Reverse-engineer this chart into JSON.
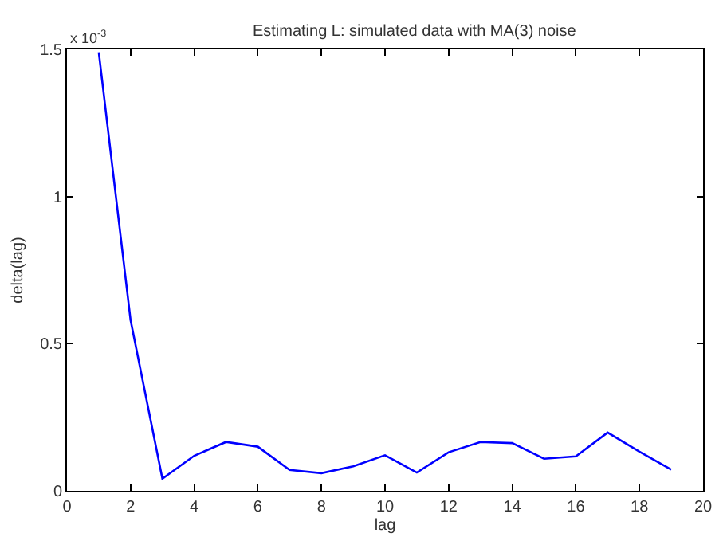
{
  "chart_data": {
    "type": "line",
    "title": "Estimating L: simulated data with MA(3) noise",
    "xlabel": "lag",
    "ylabel": "delta(lag)",
    "annotations": [
      "x 10$^{-3}$"
    ],
    "x": [
      1,
      2,
      3,
      4,
      5,
      6,
      7,
      8,
      9,
      10,
      11,
      12,
      13,
      14,
      15,
      16,
      17,
      18,
      19
    ],
    "series": [
      {
        "color": "#0000ff",
        "values": [
          1.49,
          0.58,
          0.041,
          0.119,
          0.166,
          0.15,
          0.071,
          0.06,
          0.083,
          0.121,
          0.062,
          0.131,
          0.166,
          0.162,
          0.109,
          0.117,
          0.198,
          0.133,
          0.072
        ]
      }
    ],
    "xlim": [
      0,
      20
    ],
    "xticks": [
      0,
      2,
      4,
      6,
      8,
      10,
      12,
      14,
      16,
      18,
      20
    ],
    "ylim": [
      0,
      1.5
    ],
    "yticks": [
      0,
      0.5,
      1,
      1.5
    ],
    "marker": "none",
    "line_style": "solid"
  }
}
